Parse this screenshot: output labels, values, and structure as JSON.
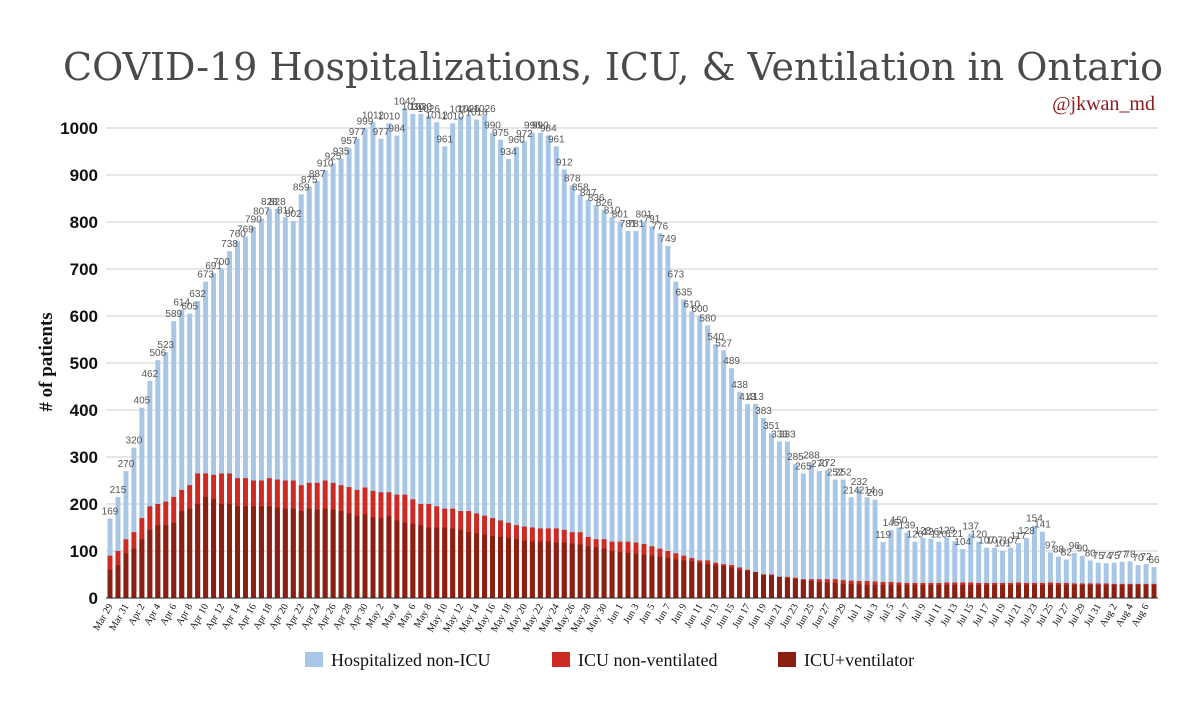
{
  "chart_data": {
    "type": "bar",
    "stacked": true,
    "title": "COVID-19 Hospitalizations, ICU, & Ventilation in Ontario",
    "subtitle": "@jkwan_md",
    "ylabel": "# of patients",
    "xlabel": "",
    "ylim": [
      0,
      1000
    ],
    "yticks": [
      0,
      100,
      200,
      300,
      400,
      500,
      600,
      700,
      800,
      900,
      1000
    ],
    "grid": true,
    "legend_position": "bottom",
    "start_date": "2020-03-29",
    "x_tick_labels": [
      "Mar 29",
      "Mar 31",
      "Apr 2",
      "Apr 4",
      "Apr 6",
      "Apr 8",
      "Apr 10",
      "Apr 12",
      "Apr 14",
      "Apr 16",
      "Apr 18",
      "Apr 20",
      "Apr 22",
      "Apr 24",
      "Apr 26",
      "Apr 28",
      "Apr 30",
      "May 2",
      "May 4",
      "May 6",
      "May 8",
      "May 10",
      "May 12",
      "May 14",
      "May 16",
      "May 18",
      "May 20",
      "May 22",
      "May 24",
      "May 26",
      "May 28",
      "May 30",
      "Jun 1",
      "Jun 3",
      "Jun 5",
      "Jun 7",
      "Jun 9",
      "Jun 11",
      "Jun 13",
      "Jun 15",
      "Jun 17",
      "Jun 19",
      "Jun 21",
      "Jun 23",
      "Jun 25",
      "Jun 27",
      "Jun 29",
      "Jul 1",
      "Jul 3",
      "Jul 5",
      "Jul 7",
      "Jul 9",
      "Jul 11",
      "Jul 13",
      "Jul 15",
      "Jul 17",
      "Jul 19",
      "Jul 21",
      "Jul 23",
      "Jul 25",
      "Jul 27",
      "Jul 29",
      "Jul 31",
      "Aug 2",
      "Aug 4",
      "Aug 6"
    ],
    "series": [
      {
        "name": "Hospitalized non-ICU",
        "color": "#a8c6e6",
        "role": "total"
      },
      {
        "name": "ICU non-ventilated",
        "color": "#cc2a22",
        "role": "icu"
      },
      {
        "name": "ICU+ventilator",
        "color": "#8b1f12",
        "role": "vent"
      }
    ],
    "totals": [
      169,
      215,
      270,
      320,
      405,
      462,
      506,
      523,
      589,
      614,
      605,
      632,
      673,
      691,
      700,
      738,
      760,
      769,
      790,
      807,
      828,
      828,
      810,
      802,
      859,
      875,
      887,
      910,
      925,
      935,
      957,
      977,
      999,
      1012,
      977,
      1010,
      984,
      1042,
      1030,
      1030,
      1026,
      1012,
      961,
      1010,
      1024,
      1026,
      1018,
      1026,
      990,
      975,
      934,
      960,
      972,
      990,
      990,
      984,
      961,
      912,
      878,
      858,
      847,
      836,
      826,
      810,
      801,
      781,
      781,
      801,
      791,
      776,
      749,
      673,
      635,
      610,
      600,
      580,
      540,
      527,
      489,
      438,
      413,
      413,
      383,
      351,
      333,
      333,
      285,
      265,
      288,
      270,
      272,
      252,
      252,
      214,
      232,
      214,
      209,
      119,
      145,
      150,
      139,
      120,
      128,
      126,
      120,
      129,
      121,
      104,
      137,
      120,
      107,
      107,
      101,
      107,
      117,
      128,
      154,
      141,
      97,
      88,
      82,
      96,
      90,
      80,
      75,
      74,
      75,
      77,
      78,
      70,
      72,
      66
    ],
    "icu": [
      90,
      100,
      125,
      140,
      170,
      195,
      200,
      205,
      215,
      230,
      240,
      265,
      265,
      262,
      265,
      265,
      255,
      255,
      250,
      250,
      255,
      252,
      250,
      250,
      240,
      245,
      245,
      250,
      245,
      240,
      236,
      230,
      235,
      228,
      225,
      225,
      220,
      220,
      210,
      200,
      200,
      195,
      190,
      190,
      185,
      185,
      180,
      175,
      170,
      165,
      160,
      155,
      152,
      150,
      148,
      148,
      148,
      145,
      140,
      140,
      130,
      125,
      125,
      120,
      120,
      120,
      118,
      115,
      110,
      105,
      100,
      95,
      90,
      85,
      80,
      80,
      75,
      72,
      70,
      65,
      60,
      55,
      50,
      50,
      45,
      45,
      43,
      40,
      40,
      40,
      40,
      40,
      38,
      37,
      36,
      36,
      35,
      34,
      34,
      33,
      32,
      32,
      32,
      32,
      32,
      33,
      33,
      33,
      33,
      32,
      32,
      32,
      32,
      32,
      33,
      32,
      32,
      32,
      33,
      32,
      32,
      31,
      31,
      31,
      31,
      31,
      30,
      30,
      30,
      30,
      30,
      30
    ],
    "vent": [
      60,
      70,
      95,
      105,
      125,
      145,
      155,
      155,
      160,
      185,
      190,
      200,
      215,
      210,
      200,
      200,
      195,
      195,
      195,
      195,
      195,
      192,
      190,
      190,
      185,
      190,
      188,
      190,
      188,
      185,
      180,
      175,
      178,
      172,
      170,
      175,
      165,
      160,
      158,
      155,
      150,
      150,
      150,
      148,
      145,
      140,
      138,
      135,
      132,
      130,
      128,
      125,
      122,
      120,
      120,
      120,
      118,
      118,
      116,
      114,
      110,
      108,
      105,
      100,
      98,
      96,
      94,
      92,
      90,
      88,
      85,
      82,
      80,
      78,
      75,
      72,
      70,
      68,
      65,
      60,
      58,
      55,
      50,
      48,
      45,
      42,
      40,
      38,
      36,
      34,
      33,
      32,
      30,
      30,
      29,
      28,
      28,
      28,
      28,
      28,
      28,
      28,
      28,
      28,
      28,
      28,
      28,
      28,
      28,
      28,
      28,
      28,
      28,
      28,
      28,
      28,
      28,
      28,
      28,
      28,
      28,
      28,
      28,
      28,
      28,
      28,
      28,
      28,
      28,
      28,
      28,
      28
    ]
  }
}
